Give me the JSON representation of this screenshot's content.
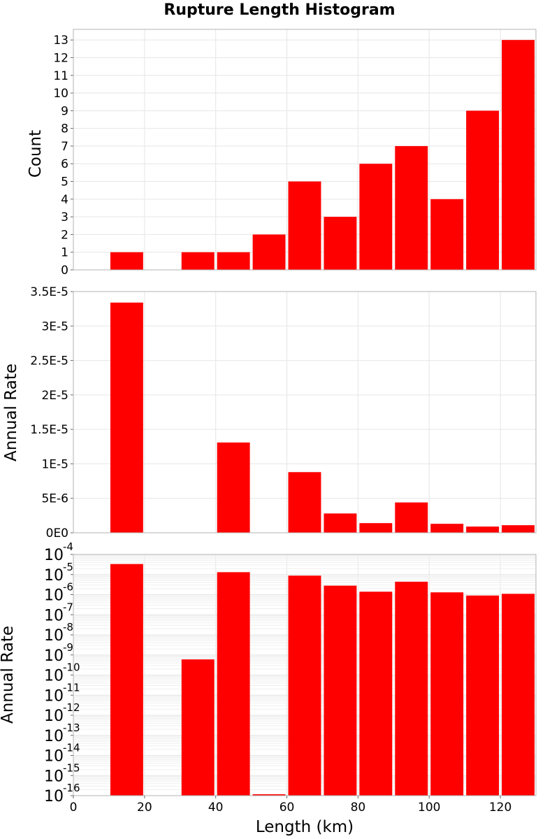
{
  "title": "Rupture Length Histogram",
  "colors": {
    "bar": "#ff0000",
    "grid": "#e6e6e6",
    "frame": "#b3b3b3",
    "background": "#ffffff"
  },
  "x_axis": {
    "label": "Length (km)",
    "range": [
      0,
      130
    ],
    "ticks": [
      0,
      20,
      40,
      60,
      80,
      100,
      120
    ]
  },
  "chart_data": [
    {
      "type": "bar",
      "panel": "top",
      "ylabel": "Count",
      "ylim": [
        0,
        13.6
      ],
      "y_ticks": [
        0,
        1,
        2,
        3,
        4,
        5,
        6,
        7,
        8,
        9,
        10,
        11,
        12,
        13
      ],
      "y_tick_labels": [
        "0",
        "1",
        "2",
        "3",
        "4",
        "5",
        "6",
        "7",
        "8",
        "9",
        "10",
        "11",
        "12",
        "13"
      ],
      "bin_width": 10,
      "bin_centers": [
        15,
        35,
        45,
        55,
        65,
        75,
        85,
        95,
        105,
        115,
        125
      ],
      "values": [
        1,
        1,
        1,
        2,
        5,
        3,
        6,
        7,
        4,
        9,
        13
      ],
      "grid": true
    },
    {
      "type": "bar",
      "panel": "middle",
      "ylabel": "Annual Rate",
      "ylim": [
        0,
        3.5e-05
      ],
      "y_ticks": [
        0,
        5e-06,
        1e-05,
        1.5e-05,
        2e-05,
        2.5e-05,
        3e-05,
        3.5e-05
      ],
      "y_tick_labels": [
        "0E0",
        "5E-6",
        "1E-5",
        "1.5E-5",
        "2E-5",
        "2.5E-5",
        "3E-5",
        "3.5E-5"
      ],
      "bin_width": 10,
      "bin_centers": [
        15,
        35,
        45,
        55,
        65,
        75,
        85,
        95,
        105,
        115,
        125
      ],
      "values": [
        3.34e-05,
        6e-10,
        1.31e-05,
        1e-16,
        8.8e-06,
        2.8e-06,
        1.4e-06,
        4.4e-06,
        1.3e-06,
        9e-07,
        1.1e-06
      ],
      "grid": true
    },
    {
      "type": "bar",
      "panel": "bottom",
      "ylabel": "Annual Rate",
      "y_scale": "log",
      "ylim_exponents": [
        -16,
        -4
      ],
      "y_tick_base": "10",
      "y_tick_exponents": [
        "-16",
        "-15",
        "-14",
        "-13",
        "-12",
        "-11",
        "-10",
        "-9",
        "-8",
        "-7",
        "-6",
        "-5",
        "-4"
      ],
      "bin_width": 10,
      "bin_centers": [
        15,
        35,
        45,
        55,
        65,
        75,
        85,
        95,
        105,
        115,
        125
      ],
      "values": [
        3.34e-05,
        6e-10,
        1.31e-05,
        1e-16,
        8.8e-06,
        2.8e-06,
        1.4e-06,
        4.4e-06,
        1.3e-06,
        9e-07,
        1.1e-06
      ],
      "grid": true
    }
  ]
}
